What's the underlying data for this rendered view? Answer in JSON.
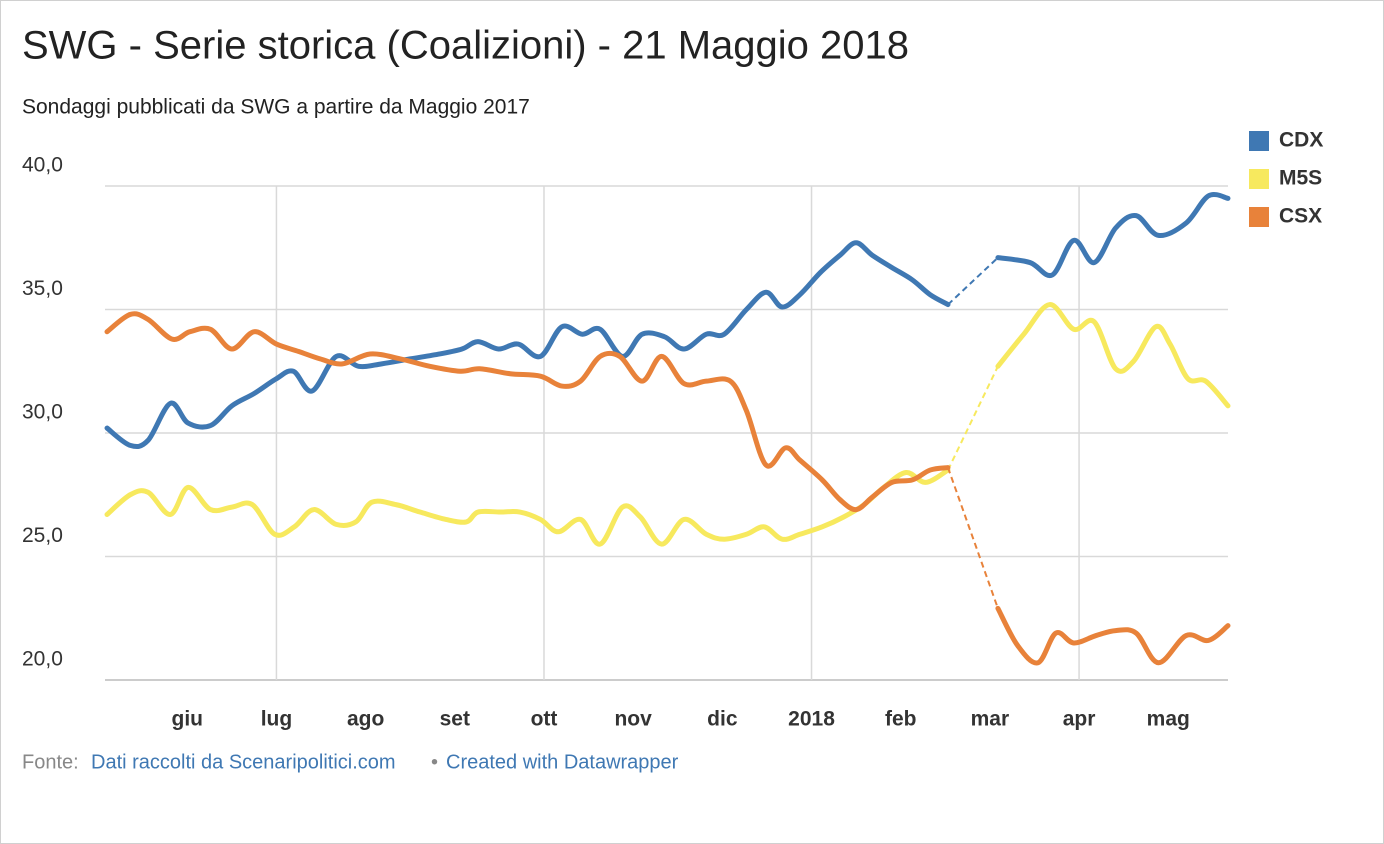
{
  "chart_data": {
    "type": "line",
    "title": "SWG - Serie storica (Coalizioni) - 21 Maggio 2018",
    "subtitle": "Sondaggi pubblicati da SWG a partire da Maggio 2017",
    "xlim": [
      0.1,
      12.67
    ],
    "xticks": [
      {
        "value": 1,
        "label": "giu"
      },
      {
        "value": 2,
        "label": "lug"
      },
      {
        "value": 3,
        "label": "ago"
      },
      {
        "value": 4,
        "label": "set"
      },
      {
        "value": 5,
        "label": "ott"
      },
      {
        "value": 6,
        "label": "nov"
      },
      {
        "value": 7,
        "label": "dic"
      },
      {
        "value": 8,
        "label": "2018"
      },
      {
        "value": 9,
        "label": "feb"
      },
      {
        "value": 10,
        "label": "mar"
      },
      {
        "value": 11,
        "label": "apr"
      },
      {
        "value": 12,
        "label": "mag"
      }
    ],
    "xgrid": [
      2,
      5,
      8,
      11
    ],
    "ylim": [
      20,
      40
    ],
    "yticks": [
      {
        "value": 20,
        "label": "20,0"
      },
      {
        "value": 25,
        "label": "25,0"
      },
      {
        "value": 30,
        "label": "30,0"
      },
      {
        "value": 35,
        "label": "35,0"
      },
      {
        "value": 40,
        "label": "40,0"
      }
    ],
    "grid": true,
    "legend": "right",
    "series": [
      {
        "name": "CDX",
        "color": "#3f78b3",
        "x": [
          0.1,
          0.36,
          0.56,
          0.81,
          1.01,
          1.26,
          1.5,
          1.75,
          2.0,
          2.19,
          2.4,
          2.67,
          2.92,
          3.18,
          3.5,
          3.83,
          4.08,
          4.26,
          4.49,
          4.71,
          4.96,
          5.2,
          5.43,
          5.63,
          5.88,
          6.1,
          6.35,
          6.57,
          6.82,
          7.02,
          7.27,
          7.49,
          7.67,
          7.87,
          8.1,
          8.32,
          8.5,
          8.68,
          8.9,
          9.13,
          9.33,
          9.53,
          9.8,
          10.09,
          10.45,
          10.7,
          10.94,
          11.17,
          11.41,
          11.64,
          11.89,
          12.2,
          12.45,
          12.67
        ],
        "values": [
          30.2,
          29.5,
          29.7,
          31.2,
          30.4,
          30.3,
          31.1,
          31.6,
          32.2,
          32.5,
          31.7,
          33.1,
          32.7,
          32.8,
          33.0,
          33.2,
          33.4,
          33.7,
          33.4,
          33.6,
          33.1,
          34.3,
          34.0,
          34.2,
          33.1,
          34.0,
          33.9,
          33.4,
          34.0,
          34.0,
          35.0,
          35.7,
          35.1,
          35.6,
          36.5,
          37.2,
          37.7,
          37.2,
          36.7,
          36.2,
          35.6,
          35.2,
          null,
          37.1,
          36.9,
          36.4,
          37.8,
          36.9,
          38.3,
          38.8,
          38.0,
          38.5,
          39.6,
          39.5
        ]
      },
      {
        "name": "M5S",
        "color": "#f7e95e",
        "x": [
          0.1,
          0.36,
          0.56,
          0.81,
          1.01,
          1.26,
          1.5,
          1.73,
          1.98,
          2.2,
          2.42,
          2.67,
          2.89,
          3.07,
          3.34,
          3.61,
          3.9,
          4.13,
          4.26,
          4.51,
          4.73,
          4.96,
          5.16,
          5.41,
          5.63,
          5.88,
          6.08,
          6.32,
          6.57,
          6.82,
          7.02,
          7.27,
          7.47,
          7.67,
          7.87,
          8.12,
          8.36,
          8.59,
          8.81,
          9.06,
          9.28,
          9.53,
          9.8,
          10.09,
          10.38,
          10.67,
          10.94,
          11.17,
          11.41,
          11.61,
          11.86,
          12.02,
          12.22,
          12.42,
          12.67
        ],
        "values": [
          26.7,
          27.5,
          27.6,
          26.7,
          27.8,
          26.9,
          27.0,
          27.1,
          25.9,
          26.2,
          26.9,
          26.3,
          26.4,
          27.2,
          27.1,
          26.8,
          26.5,
          26.4,
          26.8,
          26.8,
          26.8,
          26.5,
          26.0,
          26.5,
          25.5,
          27.0,
          26.6,
          25.5,
          26.5,
          25.9,
          25.7,
          25.9,
          26.2,
          25.7,
          25.9,
          26.2,
          26.6,
          27.1,
          27.8,
          28.4,
          28.0,
          28.5,
          null,
          32.7,
          34.0,
          35.2,
          34.2,
          34.5,
          32.6,
          32.9,
          34.3,
          33.6,
          32.2,
          32.1,
          31.1
        ]
      },
      {
        "name": "CSX",
        "color": "#e8823a",
        "x": [
          0.1,
          0.36,
          0.56,
          0.83,
          1.03,
          1.26,
          1.5,
          1.75,
          2.0,
          2.25,
          2.49,
          2.74,
          3.05,
          3.39,
          3.72,
          4.06,
          4.28,
          4.62,
          4.96,
          5.2,
          5.41,
          5.63,
          5.85,
          6.1,
          6.32,
          6.57,
          6.82,
          7.09,
          7.27,
          7.49,
          7.71,
          7.87,
          8.12,
          8.32,
          8.5,
          8.68,
          8.9,
          9.13,
          9.33,
          9.53,
          9.8,
          10.09,
          10.31,
          10.54,
          10.74,
          10.94,
          11.19,
          11.41,
          11.64,
          11.89,
          12.2,
          12.45,
          12.67
        ],
        "values": [
          34.1,
          34.8,
          34.6,
          33.8,
          34.1,
          34.2,
          33.4,
          34.1,
          33.6,
          33.3,
          33.0,
          32.8,
          33.2,
          33.0,
          32.7,
          32.5,
          32.6,
          32.4,
          32.3,
          31.9,
          32.1,
          33.1,
          33.1,
          32.1,
          33.1,
          32.0,
          32.1,
          32.1,
          30.9,
          28.7,
          29.4,
          28.9,
          28.1,
          27.3,
          26.9,
          27.4,
          28.0,
          28.1,
          28.5,
          28.6,
          null,
          22.9,
          21.4,
          20.7,
          21.9,
          21.5,
          21.8,
          22.0,
          21.9,
          20.7,
          21.8,
          21.6,
          22.2
        ]
      }
    ],
    "footer": {
      "label": "Fonte:",
      "source": "Dati raccolti da Scenaripolitici.com",
      "separator": "•",
      "credit": "Created with Datawrapper"
    }
  }
}
